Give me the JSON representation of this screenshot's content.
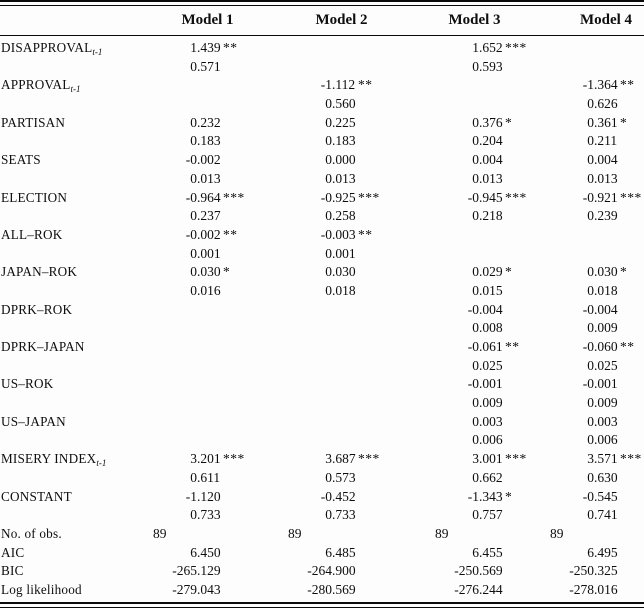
{
  "table": {
    "columns": [
      "Model 1",
      "Model 2",
      "Model 3",
      "Model 4"
    ],
    "rows": [
      {
        "label": "DISAPPROVAL",
        "sub": "t-1",
        "coef": [
          "1.439**",
          "",
          "1.652***",
          ""
        ],
        "se": [
          "0.571",
          "",
          "0.593",
          ""
        ]
      },
      {
        "label": "APPROVAL",
        "sub": "t-1",
        "coef": [
          "",
          "-1.112**",
          "",
          "-1.364**"
        ],
        "se": [
          "",
          "0.560",
          "",
          "0.626"
        ]
      },
      {
        "label": "PARTISAN",
        "coef": [
          "0.232",
          "0.225",
          "0.376*",
          "0.361*"
        ],
        "se": [
          "0.183",
          "0.183",
          "0.204",
          "0.211"
        ]
      },
      {
        "label": "SEATS",
        "coef": [
          "-0.002",
          "0.000",
          "0.004",
          "0.004"
        ],
        "se": [
          "0.013",
          "0.013",
          "0.013",
          "0.013"
        ]
      },
      {
        "label": "ELECTION",
        "coef": [
          "-0.964***",
          "-0.925***",
          "-0.945***",
          "-0.921***"
        ],
        "se": [
          "0.237",
          "0.258",
          "0.218",
          "0.239"
        ]
      },
      {
        "label": "ALL–ROK",
        "coef": [
          "-0.002**",
          "-0.003**",
          "",
          ""
        ],
        "se": [
          "0.001",
          "0.001",
          "",
          ""
        ]
      },
      {
        "label": "JAPAN–ROK",
        "coef": [
          "0.030*",
          "0.030",
          "0.029*",
          "0.030*"
        ],
        "se": [
          "0.016",
          "0.018",
          "0.015",
          "0.018"
        ]
      },
      {
        "label": "DPRK–ROK",
        "coef": [
          "",
          "",
          "-0.004",
          "-0.004"
        ],
        "se": [
          "",
          "",
          "0.008",
          "0.009"
        ]
      },
      {
        "label": "DPRK–JAPAN",
        "coef": [
          "",
          "",
          "-0.061**",
          "-0.060**"
        ],
        "se": [
          "",
          "",
          "0.025",
          "0.025"
        ]
      },
      {
        "label": "US–ROK",
        "coef": [
          "",
          "",
          "-0.001",
          "-0.001"
        ],
        "se": [
          "",
          "",
          "0.009",
          "0.009"
        ]
      },
      {
        "label": "US–JAPAN",
        "coef": [
          "",
          "",
          "0.003",
          "0.003"
        ],
        "se": [
          "",
          "",
          "0.006",
          "0.006"
        ]
      },
      {
        "label": "MISERY INDEX",
        "sub": "t-1",
        "coef": [
          "3.201***",
          "3.687***",
          "3.001***",
          "3.571***"
        ],
        "se": [
          "0.611",
          "0.573",
          "0.662",
          "0.630"
        ]
      },
      {
        "label": "CONSTANT",
        "coef": [
          "-1.120",
          "-0.452",
          "-1.343*",
          "-0.545"
        ],
        "se": [
          "0.733",
          "0.733",
          "0.757",
          "0.741"
        ]
      }
    ],
    "stats": [
      {
        "label": "No. of obs.",
        "values": [
          "89",
          "89",
          "89",
          "89"
        ]
      },
      {
        "label": "AIC",
        "values": [
          "6.450",
          "6.485",
          "6.455",
          "6.495"
        ]
      },
      {
        "label": "BIC",
        "values": [
          "-265.129",
          "-264.900",
          "-250.569",
          "-250.325"
        ]
      },
      {
        "label": "Log likelihood",
        "values": [
          "-279.043",
          "-280.569",
          "-276.244",
          "-278.016"
        ]
      }
    ]
  }
}
